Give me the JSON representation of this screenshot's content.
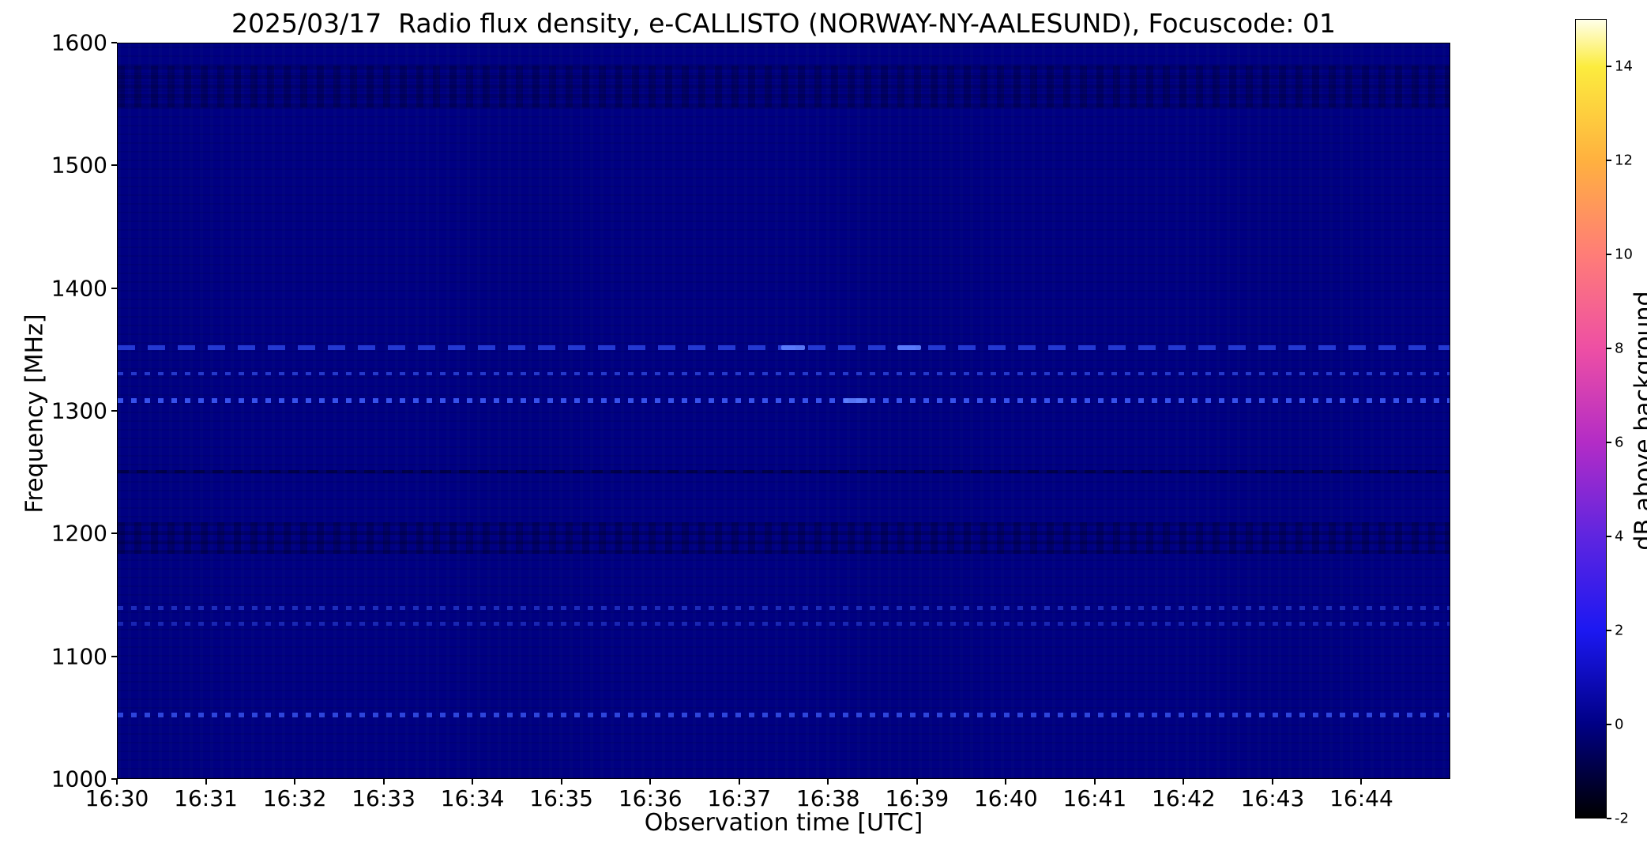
{
  "chart_data": {
    "type": "heatmap",
    "title": "2025/03/17  Radio flux density, e-CALLISTO (NORWAY-NY-AALESUND), Focuscode: 01",
    "xlabel": "Observation time [UTC]",
    "ylabel": "Frequency [MHz]",
    "x_ticks": [
      "16:30",
      "16:31",
      "16:32",
      "16:33",
      "16:34",
      "16:35",
      "16:36",
      "16:37",
      "16:38",
      "16:39",
      "16:40",
      "16:41",
      "16:42",
      "16:43",
      "16:44"
    ],
    "x_range_minutes": 15,
    "y_ticks": [
      1600,
      1500,
      1400,
      1300,
      1200,
      1100,
      1000
    ],
    "y_range": [
      1000,
      1600
    ],
    "grid": false,
    "legend": "none",
    "plot_background_value_db": 0,
    "plot_background_color": "#000082",
    "colorbar": {
      "label": "dB above background",
      "ticks": [
        -2,
        0,
        2,
        4,
        6,
        8,
        10,
        12,
        14
      ],
      "range": [
        -2,
        15
      ],
      "colormap": "black-blue-magenta-orange-yellow-white (gnuplot2-like)",
      "stops": [
        {
          "pos": 0.0,
          "color": "#000000"
        },
        {
          "pos": 0.118,
          "color": "#000086"
        },
        {
          "pos": 0.235,
          "color": "#1c18f2"
        },
        {
          "pos": 0.353,
          "color": "#5f25e0"
        },
        {
          "pos": 0.47,
          "color": "#b32cc6"
        },
        {
          "pos": 0.588,
          "color": "#ee4fa4"
        },
        {
          "pos": 0.706,
          "color": "#ff7d77"
        },
        {
          "pos": 0.824,
          "color": "#ffb13f"
        },
        {
          "pos": 0.941,
          "color": "#fcec3e"
        },
        {
          "pos": 1.0,
          "color": "#ffffe8"
        }
      ]
    },
    "features": {
      "description": "Spectrogram is nearly uniform at ~0 dB (dark navy) with faint horizontal interference bands (dotted/dashed brighter blue lines) and faint darker noise rows.",
      "bands": [
        {
          "frequency_mhz": 1565,
          "style": "speckle-dark",
          "approx_db": -0.5,
          "thickness_mhz": 34
        },
        {
          "frequency_mhz": 1352,
          "style": "dashed",
          "approx_db": 1.5,
          "thickness_mhz": 4
        },
        {
          "frequency_mhz": 1331,
          "style": "dotted",
          "approx_db": 1.2,
          "thickness_mhz": 3
        },
        {
          "frequency_mhz": 1309,
          "style": "dotted",
          "approx_db": 2.0,
          "thickness_mhz": 4
        },
        {
          "frequency_mhz": 1251,
          "style": "dark-line",
          "approx_db": -0.8,
          "thickness_mhz": 3
        },
        {
          "frequency_mhz": 1197,
          "style": "speckle-dark",
          "approx_db": -0.4,
          "thickness_mhz": 26
        },
        {
          "frequency_mhz": 1140,
          "style": "dotted",
          "approx_db": 0.8,
          "thickness_mhz": 3
        },
        {
          "frequency_mhz": 1127,
          "style": "dotted",
          "approx_db": 0.6,
          "thickness_mhz": 3
        },
        {
          "frequency_mhz": 1053,
          "style": "dotted",
          "approx_db": 1.6,
          "thickness_mhz": 4
        }
      ],
      "hotspots": [
        {
          "frequency_mhz": 1352,
          "minute_offset": 7.6,
          "approx_db": 3.0
        },
        {
          "frequency_mhz": 1352,
          "minute_offset": 8.9,
          "approx_db": 3.0
        },
        {
          "frequency_mhz": 1309,
          "minute_offset": 8.3,
          "approx_db": 2.5
        }
      ]
    }
  }
}
